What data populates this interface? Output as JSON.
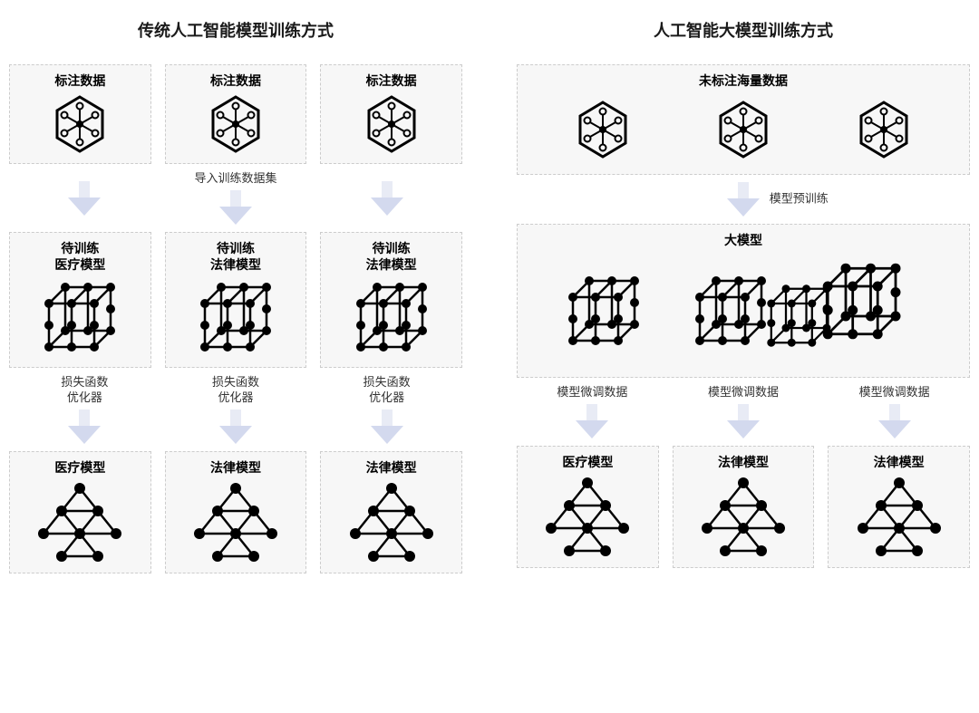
{
  "left": {
    "title": "传统人工智能模型训练方式",
    "data_boxes": [
      "标注数据",
      "标注数据",
      "标注数据"
    ],
    "arrow1_label": "导入训练数据集",
    "train_boxes": [
      "待训练\n医疗模型",
      "待训练\n法律模型",
      "待训练\n法律模型"
    ],
    "arrow2_label": "损失函数\n优化器",
    "result_boxes": [
      "医疗模型",
      "法律模型",
      "法律模型"
    ]
  },
  "right": {
    "title": "人工智能大模型训练方式",
    "data_box": "未标注海量数据",
    "arrow1_label": "模型预训练",
    "big_model": "大模型",
    "arrow2_labels": [
      "模型微调数据",
      "模型微调数据",
      "模型微调数据"
    ],
    "result_boxes": [
      "医疗模型",
      "法律模型",
      "法律模型"
    ]
  },
  "style": {
    "type": "flowchart",
    "background_color": "#ffffff",
    "box_bg": "#f7f7f7",
    "box_border": "#cccccc",
    "box_border_style": "dashed",
    "text_color": "#000000",
    "title_fontsize": 18,
    "label_fontsize": 14,
    "caption_fontsize": 13,
    "arrow_color_light": "#e8ebf5",
    "arrow_color_dark": "#d3d9ee",
    "icon_stroke": "#000000",
    "icon_fill": "#000000"
  }
}
